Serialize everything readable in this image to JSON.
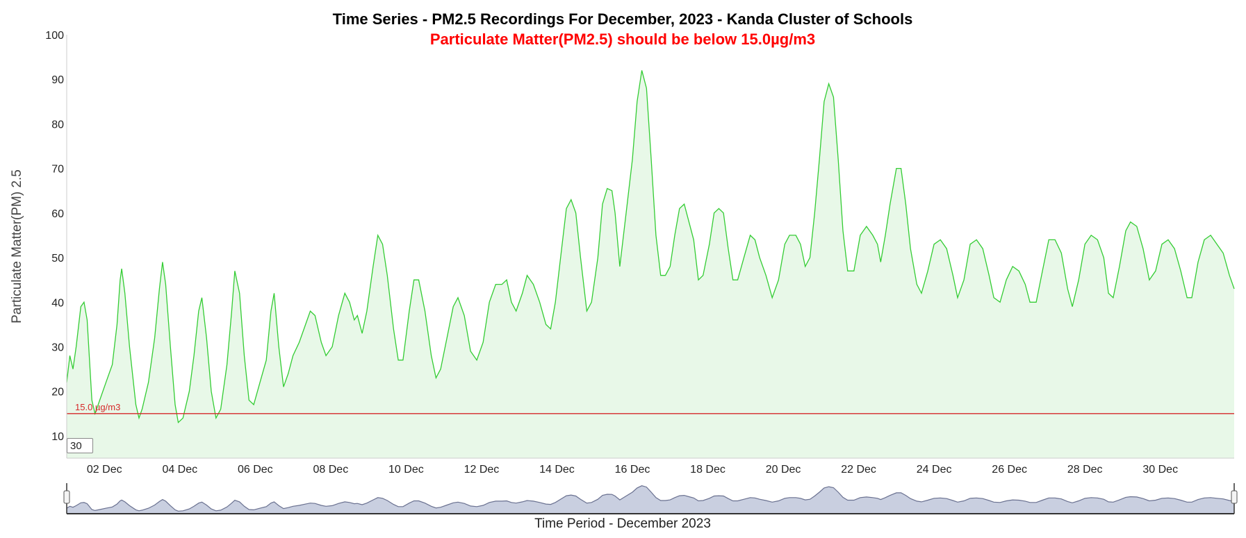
{
  "chart_data": {
    "type": "area",
    "title": "Time Series - PM2.5 Recordings For December, 2023 - Kanda Cluster of Schools",
    "subtitle": "Particulate Matter(PM2.5) should be below 15.0µg/m3",
    "xlabel": "Time Period - December 2023",
    "ylabel": "Particulate Matter(PM) 2.5",
    "ylim": [
      5,
      100
    ],
    "yticks": [
      10,
      20,
      30,
      40,
      50,
      60,
      70,
      80,
      90,
      100
    ],
    "xlim": [
      "2023-12-01",
      "2023-12-31 23:00"
    ],
    "xtick_labels": [
      "02 Dec",
      "04 Dec",
      "06 Dec",
      "08 Dec",
      "10 Dec",
      "12 Dec",
      "14 Dec",
      "16 Dec",
      "18 Dec",
      "20 Dec",
      "22 Dec",
      "24 Dec",
      "26 Dec",
      "28 Dec",
      "30 Dec"
    ],
    "xtick_dates": [
      "2023-12-02",
      "2023-12-04",
      "2023-12-06",
      "2023-12-08",
      "2023-12-10",
      "2023-12-12",
      "2023-12-14",
      "2023-12-16",
      "2023-12-18",
      "2023-12-20",
      "2023-12-22",
      "2023-12-24",
      "2023-12-26",
      "2023-12-28",
      "2023-12-30"
    ],
    "threshold": {
      "value": 15.0,
      "label": "15.0 µg/m3",
      "color": "#d62728"
    },
    "rolling_period": "30",
    "line_color": "#33cc33",
    "fill_color": "#e8f8e8",
    "grid": false,
    "legend": "none",
    "series": [
      {
        "points": [
          [
            "2023-12-01 00:00",
            22
          ],
          [
            "2023-12-01 02:00",
            28
          ],
          [
            "2023-12-01 04:00",
            25
          ],
          [
            "2023-12-01 06:00",
            30
          ],
          [
            "2023-12-01 09:00",
            39
          ],
          [
            "2023-12-01 11:00",
            40
          ],
          [
            "2023-12-01 13:00",
            36
          ],
          [
            "2023-12-01 16:00",
            18
          ],
          [
            "2023-12-01 18:00",
            15
          ],
          [
            "2023-12-01 21:00",
            18
          ],
          [
            "2023-12-02 01:00",
            22
          ],
          [
            "2023-12-02 05:00",
            26
          ],
          [
            "2023-12-02 08:00",
            35
          ],
          [
            "2023-12-02 10:00",
            45
          ],
          [
            "2023-12-02 11:00",
            47.5
          ],
          [
            "2023-12-02 13:00",
            42
          ],
          [
            "2023-12-02 16:00",
            30
          ],
          [
            "2023-12-02 20:00",
            17
          ],
          [
            "2023-12-02 22:00",
            14
          ],
          [
            "2023-12-03 00:00",
            16
          ],
          [
            "2023-12-03 04:00",
            22
          ],
          [
            "2023-12-03 08:00",
            32
          ],
          [
            "2023-12-03 11:00",
            43
          ],
          [
            "2023-12-03 13:00",
            49
          ],
          [
            "2023-12-03 15:00",
            44
          ],
          [
            "2023-12-03 18:00",
            30
          ],
          [
            "2023-12-03 21:00",
            17
          ],
          [
            "2023-12-03 23:00",
            13
          ],
          [
            "2023-12-04 02:00",
            14
          ],
          [
            "2023-12-04 06:00",
            20
          ],
          [
            "2023-12-04 09:00",
            28
          ],
          [
            "2023-12-04 12:00",
            38
          ],
          [
            "2023-12-04 14:00",
            41
          ],
          [
            "2023-12-04 17:00",
            32
          ],
          [
            "2023-12-04 20:00",
            20
          ],
          [
            "2023-12-04 23:00",
            14
          ],
          [
            "2023-12-05 02:00",
            16
          ],
          [
            "2023-12-05 06:00",
            26
          ],
          [
            "2023-12-05 09:00",
            38
          ],
          [
            "2023-12-05 11:00",
            47
          ],
          [
            "2023-12-05 14:00",
            42
          ],
          [
            "2023-12-05 17:00",
            28
          ],
          [
            "2023-12-05 20:00",
            18
          ],
          [
            "2023-12-05 23:00",
            17
          ],
          [
            "2023-12-06 03:00",
            22
          ],
          [
            "2023-12-06 07:00",
            27
          ],
          [
            "2023-12-06 10:00",
            38
          ],
          [
            "2023-12-06 12:00",
            42
          ],
          [
            "2023-12-06 15:00",
            30
          ],
          [
            "2023-12-06 18:00",
            21
          ],
          [
            "2023-12-06 21:00",
            24
          ],
          [
            "2023-12-07 00:00",
            28
          ],
          [
            "2023-12-07 04:00",
            31
          ],
          [
            "2023-12-07 08:00",
            35
          ],
          [
            "2023-12-07 11:00",
            38
          ],
          [
            "2023-12-07 14:00",
            37
          ],
          [
            "2023-12-07 18:00",
            31
          ],
          [
            "2023-12-07 21:00",
            28
          ],
          [
            "2023-12-08 01:00",
            30
          ],
          [
            "2023-12-08 05:00",
            37
          ],
          [
            "2023-12-08 09:00",
            42
          ],
          [
            "2023-12-08 12:00",
            40
          ],
          [
            "2023-12-08 15:00",
            36
          ],
          [
            "2023-12-08 17:00",
            37
          ],
          [
            "2023-12-08 20:00",
            33
          ],
          [
            "2023-12-08 23:00",
            38
          ],
          [
            "2023-12-09 03:00",
            48
          ],
          [
            "2023-12-09 06:00",
            55
          ],
          [
            "2023-12-09 09:00",
            53
          ],
          [
            "2023-12-09 12:00",
            46
          ],
          [
            "2023-12-09 16:00",
            34
          ],
          [
            "2023-12-09 19:00",
            27
          ],
          [
            "2023-12-09 22:00",
            27
          ],
          [
            "2023-12-10 02:00",
            38
          ],
          [
            "2023-12-10 05:00",
            45
          ],
          [
            "2023-12-10 08:00",
            45
          ],
          [
            "2023-12-10 12:00",
            38
          ],
          [
            "2023-12-10 16:00",
            28
          ],
          [
            "2023-12-10 19:00",
            23
          ],
          [
            "2023-12-10 22:00",
            25
          ],
          [
            "2023-12-11 02:00",
            32
          ],
          [
            "2023-12-11 06:00",
            39
          ],
          [
            "2023-12-11 09:00",
            41
          ],
          [
            "2023-12-11 13:00",
            37
          ],
          [
            "2023-12-11 17:00",
            29
          ],
          [
            "2023-12-11 21:00",
            27
          ],
          [
            "2023-12-12 01:00",
            31
          ],
          [
            "2023-12-12 05:00",
            40
          ],
          [
            "2023-12-12 09:00",
            44
          ],
          [
            "2023-12-12 13:00",
            44
          ],
          [
            "2023-12-12 16:00",
            45
          ],
          [
            "2023-12-12 19:00",
            40
          ],
          [
            "2023-12-12 22:00",
            38
          ],
          [
            "2023-12-13 02:00",
            42
          ],
          [
            "2023-12-13 05:00",
            46
          ],
          [
            "2023-12-13 09:00",
            44
          ],
          [
            "2023-12-13 13:00",
            40
          ],
          [
            "2023-12-13 17:00",
            35
          ],
          [
            "2023-12-13 20:00",
            34
          ],
          [
            "2023-12-13 23:00",
            40
          ],
          [
            "2023-12-14 03:00",
            52
          ],
          [
            "2023-12-14 06:00",
            61
          ],
          [
            "2023-12-14 09:00",
            63
          ],
          [
            "2023-12-14 12:00",
            60
          ],
          [
            "2023-12-14 15:00",
            50
          ],
          [
            "2023-12-14 19:00",
            38
          ],
          [
            "2023-12-14 22:00",
            40
          ],
          [
            "2023-12-15 02:00",
            50
          ],
          [
            "2023-12-15 05:00",
            62
          ],
          [
            "2023-12-15 08:00",
            65.5
          ],
          [
            "2023-12-15 11:00",
            65
          ],
          [
            "2023-12-15 13:00",
            60
          ],
          [
            "2023-12-15 16:00",
            48
          ],
          [
            "2023-12-15 20:00",
            60
          ],
          [
            "2023-12-16 00:00",
            72
          ],
          [
            "2023-12-16 03:00",
            85
          ],
          [
            "2023-12-16 06:00",
            92
          ],
          [
            "2023-12-16 09:00",
            88
          ],
          [
            "2023-12-16 12:00",
            72
          ],
          [
            "2023-12-16 15:00",
            55
          ],
          [
            "2023-12-16 18:00",
            46
          ],
          [
            "2023-12-16 21:00",
            46
          ],
          [
            "2023-12-17 00:00",
            48
          ],
          [
            "2023-12-17 03:00",
            55
          ],
          [
            "2023-12-17 06:00",
            61
          ],
          [
            "2023-12-17 09:00",
            62
          ],
          [
            "2023-12-17 12:00",
            58
          ],
          [
            "2023-12-17 15:00",
            54
          ],
          [
            "2023-12-17 18:00",
            45
          ],
          [
            "2023-12-17 21:00",
            46
          ],
          [
            "2023-12-18 01:00",
            53
          ],
          [
            "2023-12-18 04:00",
            60
          ],
          [
            "2023-12-18 07:00",
            61
          ],
          [
            "2023-12-18 10:00",
            60
          ],
          [
            "2023-12-18 13:00",
            52
          ],
          [
            "2023-12-18 16:00",
            45
          ],
          [
            "2023-12-18 19:00",
            45
          ],
          [
            "2023-12-18 23:00",
            50
          ],
          [
            "2023-12-19 03:00",
            55
          ],
          [
            "2023-12-19 06:00",
            54
          ],
          [
            "2023-12-19 09:00",
            50
          ],
          [
            "2023-12-19 13:00",
            46
          ],
          [
            "2023-12-19 17:00",
            41
          ],
          [
            "2023-12-19 21:00",
            45
          ],
          [
            "2023-12-20 01:00",
            53
          ],
          [
            "2023-12-20 04:00",
            55
          ],
          [
            "2023-12-20 08:00",
            55
          ],
          [
            "2023-12-20 11:00",
            53
          ],
          [
            "2023-12-20 14:00",
            48
          ],
          [
            "2023-12-20 17:00",
            50
          ],
          [
            "2023-12-20 20:00",
            60
          ],
          [
            "2023-12-20 23:00",
            72
          ],
          [
            "2023-12-21 02:00",
            85
          ],
          [
            "2023-12-21 05:00",
            89
          ],
          [
            "2023-12-21 08:00",
            86
          ],
          [
            "2023-12-21 11:00",
            72
          ],
          [
            "2023-12-21 14:00",
            56
          ],
          [
            "2023-12-21 17:00",
            47
          ],
          [
            "2023-12-21 21:00",
            47
          ],
          [
            "2023-12-22 01:00",
            55
          ],
          [
            "2023-12-22 05:00",
            57
          ],
          [
            "2023-12-22 09:00",
            55
          ],
          [
            "2023-12-22 12:00",
            53
          ],
          [
            "2023-12-22 14:00",
            49
          ],
          [
            "2023-12-22 17:00",
            55
          ],
          [
            "2023-12-22 20:00",
            62
          ],
          [
            "2023-12-23 00:00",
            70
          ],
          [
            "2023-12-23 03:00",
            70
          ],
          [
            "2023-12-23 06:00",
            62
          ],
          [
            "2023-12-23 09:00",
            52
          ],
          [
            "2023-12-23 13:00",
            44
          ],
          [
            "2023-12-23 16:00",
            42
          ],
          [
            "2023-12-23 20:00",
            47
          ],
          [
            "2023-12-24 00:00",
            53
          ],
          [
            "2023-12-24 04:00",
            54
          ],
          [
            "2023-12-24 08:00",
            52
          ],
          [
            "2023-12-24 12:00",
            46
          ],
          [
            "2023-12-24 15:00",
            41
          ],
          [
            "2023-12-24 19:00",
            45
          ],
          [
            "2023-12-24 23:00",
            53
          ],
          [
            "2023-12-25 03:00",
            54
          ],
          [
            "2023-12-25 07:00",
            52
          ],
          [
            "2023-12-25 11:00",
            46
          ],
          [
            "2023-12-25 14:00",
            41
          ],
          [
            "2023-12-25 18:00",
            40
          ],
          [
            "2023-12-25 22:00",
            45
          ],
          [
            "2023-12-26 02:00",
            48
          ],
          [
            "2023-12-26 06:00",
            47
          ],
          [
            "2023-12-26 10:00",
            44
          ],
          [
            "2023-12-26 13:00",
            40
          ],
          [
            "2023-12-26 17:00",
            40
          ],
          [
            "2023-12-26 21:00",
            47
          ],
          [
            "2023-12-27 01:00",
            54
          ],
          [
            "2023-12-27 05:00",
            54
          ],
          [
            "2023-12-27 09:00",
            51
          ],
          [
            "2023-12-27 13:00",
            43
          ],
          [
            "2023-12-27 16:00",
            39
          ],
          [
            "2023-12-27 20:00",
            45
          ],
          [
            "2023-12-28 00:00",
            53
          ],
          [
            "2023-12-28 04:00",
            55
          ],
          [
            "2023-12-28 08:00",
            54
          ],
          [
            "2023-12-28 12:00",
            50
          ],
          [
            "2023-12-28 15:00",
            42
          ],
          [
            "2023-12-28 18:00",
            41
          ],
          [
            "2023-12-28 22:00",
            48
          ],
          [
            "2023-12-29 02:00",
            56
          ],
          [
            "2023-12-29 05:00",
            58
          ],
          [
            "2023-12-29 09:00",
            57
          ],
          [
            "2023-12-29 13:00",
            52
          ],
          [
            "2023-12-29 17:00",
            45
          ],
          [
            "2023-12-29 21:00",
            47
          ],
          [
            "2023-12-30 01:00",
            53
          ],
          [
            "2023-12-30 05:00",
            54
          ],
          [
            "2023-12-30 09:00",
            52
          ],
          [
            "2023-12-30 13:00",
            47
          ],
          [
            "2023-12-30 17:00",
            41
          ],
          [
            "2023-12-30 20:00",
            41
          ],
          [
            "2023-12-31 00:00",
            49
          ],
          [
            "2023-12-31 04:00",
            54
          ],
          [
            "2023-12-31 08:00",
            55
          ],
          [
            "2023-12-31 12:00",
            53
          ],
          [
            "2023-12-31 16:00",
            51
          ],
          [
            "2023-12-31 20:00",
            46
          ],
          [
            "2023-12-31 23:00",
            43
          ]
        ]
      }
    ],
    "navigator": {
      "fill_color": "#c9cfe0",
      "line_color": "#6a7190"
    }
  }
}
